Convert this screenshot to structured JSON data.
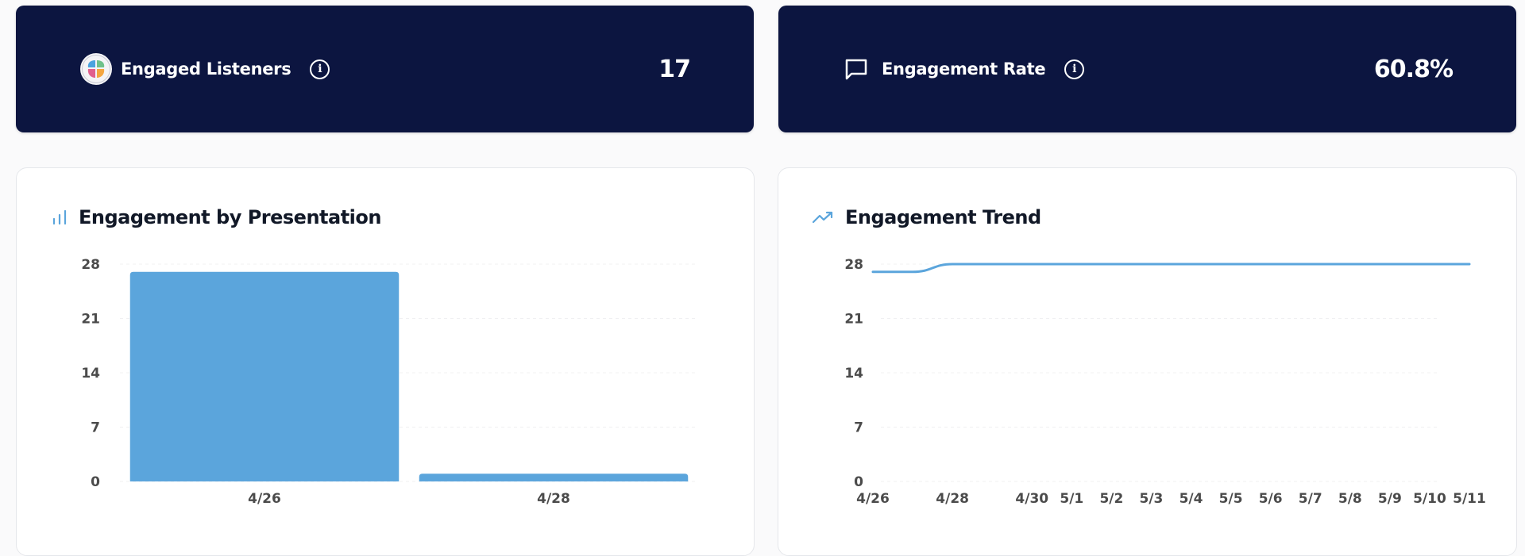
{
  "colors": {
    "card_bg": "#0c1540",
    "accent": "#5ba5dc",
    "text_dark": "#111827",
    "tick_text": "#4b4b4b"
  },
  "stats": {
    "engaged_listeners": {
      "label": "Engaged Listeners",
      "value": "17",
      "icon": "brain-logo-icon",
      "info_icon": "info-icon",
      "info_glyph": "i"
    },
    "engagement_rate": {
      "label": "Engagement Rate",
      "value": "60.8%",
      "icon": "chat-bubble-icon",
      "info_icon": "info-icon",
      "info_glyph": "i"
    }
  },
  "panels": {
    "bar": {
      "title": "Engagement by Presentation",
      "icon": "bar-chart-icon"
    },
    "trend": {
      "title": "Engagement Trend",
      "icon": "trending-up-icon"
    }
  },
  "chart_data": [
    {
      "type": "bar",
      "title": "Engagement by Presentation",
      "categories": [
        "4/26",
        "4/28"
      ],
      "values": [
        27,
        1
      ],
      "xlabel": "",
      "ylabel": "",
      "ylim": [
        0,
        28
      ],
      "yticks": [
        0,
        7,
        14,
        21,
        28
      ],
      "grid": true,
      "legend": "none"
    },
    {
      "type": "line",
      "title": "Engagement Trend",
      "x": [
        "4/26",
        "4/27",
        "4/28",
        "4/29",
        "4/30",
        "5/1",
        "5/2",
        "5/3",
        "5/4",
        "5/5",
        "5/6",
        "5/7",
        "5/8",
        "5/9",
        "5/10",
        "5/11"
      ],
      "xtick_labels": [
        "4/26",
        "4/28",
        "4/30",
        "5/1",
        "5/2",
        "5/3",
        "5/4",
        "5/5",
        "5/6",
        "5/7",
        "5/8",
        "5/9",
        "5/10",
        "5/11"
      ],
      "series": [
        {
          "name": "Engagement",
          "values": [
            27,
            27,
            28,
            28,
            28,
            28,
            28,
            28,
            28,
            28,
            28,
            28,
            28,
            28,
            28,
            28
          ]
        }
      ],
      "xlabel": "",
      "ylabel": "",
      "ylim": [
        0,
        28
      ],
      "yticks": [
        0,
        7,
        14,
        21,
        28
      ],
      "grid": true,
      "legend": "none"
    }
  ]
}
